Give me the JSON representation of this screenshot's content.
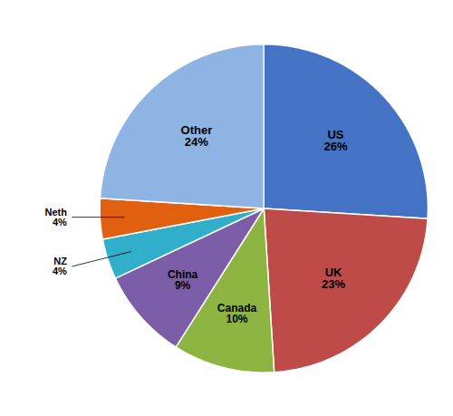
{
  "chart_data": {
    "type": "pie",
    "categories": [
      "US",
      "UK",
      "Canada",
      "China",
      "NZ",
      "Neth",
      "Other"
    ],
    "values": [
      26,
      23,
      10,
      9,
      4,
      4,
      24
    ],
    "value_labels": [
      "26%",
      "23%",
      "10%",
      "9%",
      "4%",
      "4%",
      "24%"
    ],
    "colors": [
      "#4472C4",
      "#BE4B48",
      "#8DB440",
      "#7B5EA7",
      "#31AFCA",
      "#E06010",
      "#8EB4E3"
    ],
    "data_labels": true
  }
}
